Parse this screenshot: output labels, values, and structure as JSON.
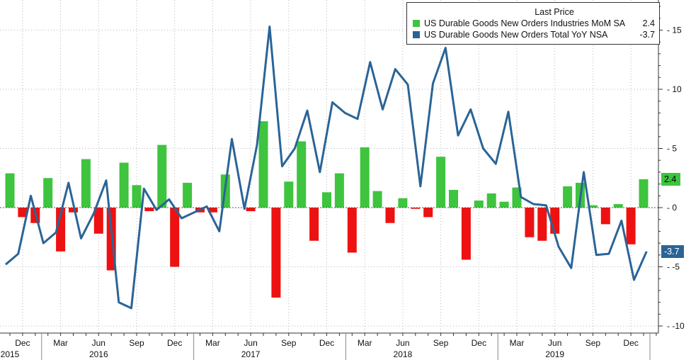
{
  "chart_data": {
    "type": "bar+line",
    "legend_title": "Last Price",
    "series": [
      {
        "name": "US Durable Goods New Orders Industries MoM SA",
        "type": "bar",
        "last_value": "2.4",
        "color_pos": "#3ec43e",
        "color_neg": "#ee1111",
        "values": [
          2.9,
          -0.8,
          -1.3,
          2.5,
          -3.7,
          -0.4,
          4.1,
          -2.2,
          -5.3,
          3.8,
          1.9,
          -0.3,
          5.3,
          -5.0,
          2.1,
          -0.4,
          -0.4,
          2.8,
          0,
          -0.3,
          7.3,
          -7.6,
          2.2,
          5.6,
          -2.8,
          1.3,
          2.9,
          -3.8,
          5.1,
          1.4,
          -1.3,
          0.8,
          -0.1,
          -0.8,
          4.3,
          1.5,
          -4.4,
          0.6,
          1.2,
          0.5,
          1.7,
          -2.5,
          -2.8,
          -2.2,
          1.8,
          2.1,
          0.2,
          -1.4,
          0.3,
          -3.1,
          2.4
        ]
      },
      {
        "name": "US Durable Goods New Orders Total YoY NSA",
        "type": "line",
        "last_value": "-3.7",
        "color": "#2a6496",
        "values": [
          -4.8,
          -3.9,
          1.0,
          -3.0,
          -2.1,
          2.1,
          -2.6,
          -0.5,
          2.3,
          -8.0,
          -8.5,
          1.6,
          -0.2,
          0.7,
          -0.9,
          -0.4,
          0.1,
          -2.0,
          5.8,
          -0.1,
          5.3,
          15.3,
          3.5,
          5.0,
          8.2,
          3.0,
          8.9,
          8.0,
          7.5,
          12.3,
          8.3,
          11.7,
          10.4,
          1.8,
          10.5,
          13.5,
          6.1,
          8.3,
          5.0,
          3.7,
          8.1,
          0.9,
          0.3,
          0.2,
          -3.3,
          -5.1,
          3.0,
          -4.0,
          -3.9,
          -1.1,
          -6.1,
          -3.7
        ]
      }
    ],
    "yticks": [
      15,
      10,
      5,
      0,
      -5,
      -10
    ],
    "ylim": [
      -10.5,
      17.5
    ],
    "x_month_labels": [
      {
        "label": "Dec",
        "index": 1
      },
      {
        "label": "Mar",
        "index": 4
      },
      {
        "label": "Jun",
        "index": 7
      },
      {
        "label": "Sep",
        "index": 10
      },
      {
        "label": "Dec",
        "index": 13
      },
      {
        "label": "Mar",
        "index": 16
      },
      {
        "label": "Jun",
        "index": 19
      },
      {
        "label": "Sep",
        "index": 22
      },
      {
        "label": "Dec",
        "index": 25
      },
      {
        "label": "Mar",
        "index": 28
      },
      {
        "label": "Jun",
        "index": 31
      },
      {
        "label": "Sep",
        "index": 34
      },
      {
        "label": "Dec",
        "index": 37
      },
      {
        "label": "Mar",
        "index": 40
      },
      {
        "label": "Jun",
        "index": 43
      },
      {
        "label": "Sep",
        "index": 46
      },
      {
        "label": "Dec",
        "index": 49
      }
    ],
    "x_year_labels": [
      {
        "label": "2015",
        "index": 0
      },
      {
        "label": "2016",
        "index": 7
      },
      {
        "label": "2017",
        "index": 19
      },
      {
        "label": "2018",
        "index": 31
      },
      {
        "label": "2019",
        "index": 43
      }
    ],
    "grid": true,
    "legend_position": "top-right"
  }
}
